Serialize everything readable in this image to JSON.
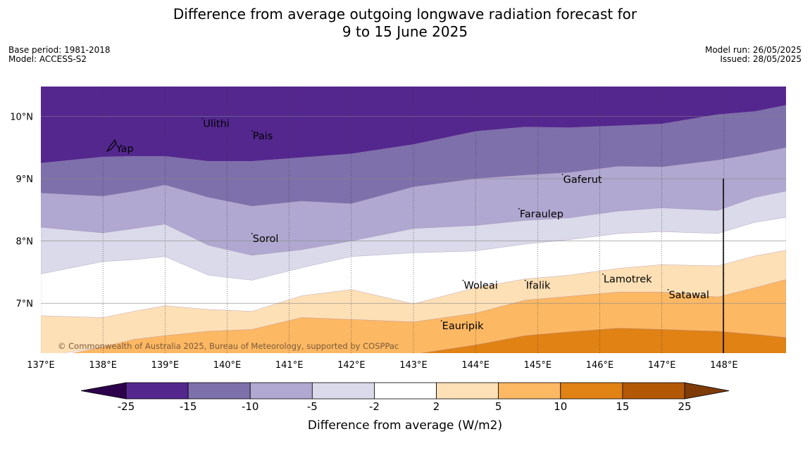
{
  "header": {
    "title_line1": "Difference from average outgoing longwave radiation forecast for",
    "title_line2": "9 to 15 June 2025",
    "base_period": "Base period: 1981-2018",
    "model": "Model: ACCESS-S2",
    "model_run": "Model run: 26/05/2025",
    "issued": "Issued: 28/05/2025"
  },
  "map": {
    "x_ticks": [
      {
        "lon": 137,
        "label": "137°E"
      },
      {
        "lon": 138,
        "label": "138°E"
      },
      {
        "lon": 139,
        "label": "139°E"
      },
      {
        "lon": 140,
        "label": "140°E"
      },
      {
        "lon": 141,
        "label": "141°E"
      },
      {
        "lon": 142,
        "label": "142°E"
      },
      {
        "lon": 143,
        "label": "143°E"
      },
      {
        "lon": 144,
        "label": "144°E"
      },
      {
        "lon": 145,
        "label": "145°E"
      },
      {
        "lon": 146,
        "label": "146°E"
      },
      {
        "lon": 147,
        "label": "147°E"
      },
      {
        "lon": 148,
        "label": "148°E"
      }
    ],
    "y_ticks": [
      {
        "lat": 10,
        "label": "10°N"
      },
      {
        "lat": 9,
        "label": "9°N"
      },
      {
        "lat": 8,
        "label": "8°N"
      },
      {
        "lat": 7,
        "label": "7°N"
      }
    ],
    "places": [
      {
        "name": "Yap",
        "lon": 138.2,
        "lat": 9.5
      },
      {
        "name": "Ulithi",
        "lon": 139.6,
        "lat": 9.9
      },
      {
        "name": "Pais",
        "lon": 140.4,
        "lat": 9.7
      },
      {
        "name": "Gaferut",
        "lon": 145.4,
        "lat": 9.0
      },
      {
        "name": "Faraulep",
        "lon": 144.7,
        "lat": 8.45
      },
      {
        "name": "Sorol",
        "lon": 140.4,
        "lat": 8.05
      },
      {
        "name": "Woleai",
        "lon": 143.8,
        "lat": 7.3
      },
      {
        "name": "Ifalik",
        "lon": 144.8,
        "lat": 7.3
      },
      {
        "name": "Lamotrek",
        "lon": 146.05,
        "lat": 7.4
      },
      {
        "name": "Satawal",
        "lon": 147.1,
        "lat": 7.15
      },
      {
        "name": "Eauripik",
        "lon": 143.45,
        "lat": 6.65
      }
    ],
    "copyright": "© Commonwealth of Australia 2025, Bureau of Meteorology, supported by COSPPac"
  },
  "colorbar": {
    "label": "Difference from average (W/m2)",
    "ticks": [
      "-25",
      "-15",
      "-10",
      "-5",
      "-2",
      "2",
      "5",
      "10",
      "15",
      "25"
    ],
    "colors": [
      "#54278f",
      "#7e70ab",
      "#b0a8d0",
      "#dadaea",
      "#ffffff",
      "#fee0b6",
      "#fdb863",
      "#e08214",
      "#b35806"
    ],
    "extend_low_color": "#2d004b",
    "extend_high_color": "#7f3b08"
  },
  "chart_data": {
    "type": "heatmap",
    "title": "Difference from average outgoing longwave radiation forecast for 9 to 15 June 2025",
    "xlabel": "",
    "ylabel": "",
    "xlim": [
      137,
      149
    ],
    "ylim": [
      6.2,
      10.5
    ],
    "legend": "bottom",
    "units": "W/m2",
    "levels": [
      -25,
      -15,
      -10,
      -5,
      -2,
      2,
      5,
      10,
      15,
      25
    ],
    "contour_x": [
      137,
      138,
      138.5,
      139,
      139.7,
      140.4,
      141.2,
      142,
      143,
      144,
      144.8,
      145.5,
      146.3,
      147,
      147.9,
      148.5,
      149
    ],
    "contour_bands": [
      {
        "range": "-25 to -15",
        "color": "#54278f",
        "lower_boundary_lat": [
          9.25,
          9.35,
          9.36,
          9.36,
          9.28,
          9.28,
          9.34,
          9.4,
          9.55,
          9.76,
          9.83,
          9.82,
          9.85,
          9.88,
          10.03,
          10.08,
          10.18
        ]
      },
      {
        "range": "-15 to -10",
        "color": "#7e70ab",
        "lower_boundary_lat": [
          8.77,
          8.72,
          8.8,
          8.9,
          8.7,
          8.56,
          8.64,
          8.6,
          8.87,
          9.0,
          9.06,
          9.1,
          9.2,
          9.19,
          9.3,
          9.4,
          9.5
        ]
      },
      {
        "range": "-10 to -5",
        "color": "#b0a8d0",
        "lower_boundary_lat": [
          8.22,
          8.13,
          8.2,
          8.27,
          7.93,
          7.77,
          7.86,
          8.0,
          8.2,
          8.25,
          8.33,
          8.37,
          8.48,
          8.53,
          8.49,
          8.7,
          8.8
        ]
      },
      {
        "range": "-5 to -2",
        "color": "#dadaea",
        "lower_boundary_lat": [
          7.47,
          7.67,
          7.7,
          7.75,
          7.45,
          7.37,
          7.57,
          7.75,
          7.81,
          7.84,
          7.95,
          8.02,
          8.12,
          8.15,
          8.12,
          8.3,
          8.38
        ]
      },
      {
        "range": "-2 to 2",
        "color": "#ffffff",
        "lower_boundary_lat": [
          6.8,
          6.77,
          6.87,
          6.96,
          6.9,
          6.87,
          7.12,
          7.22,
          6.99,
          7.25,
          7.39,
          7.45,
          7.56,
          7.62,
          7.6,
          7.76,
          7.85
        ]
      },
      {
        "range": "2 to 5",
        "color": "#fee0b6",
        "lower_boundary_lat": [
          6.1,
          6.3,
          6.42,
          6.48,
          6.55,
          6.58,
          6.77,
          6.74,
          6.7,
          6.84,
          7.05,
          7.11,
          7.18,
          7.18,
          7.1,
          7.25,
          7.38
        ]
      },
      {
        "range": "5 to 10",
        "color": "#fdb863",
        "lower_boundary_lat": [
          6.1,
          6.1,
          6.1,
          6.1,
          6.1,
          6.1,
          6.1,
          6.1,
          6.18,
          6.33,
          6.48,
          6.54,
          6.6,
          6.58,
          6.55,
          6.5,
          6.45
        ]
      },
      {
        "range": "10 to 15",
        "color": "#e08214",
        "lower_boundary_lat": [
          6.1,
          6.1,
          6.1,
          6.1,
          6.1,
          6.1,
          6.1,
          6.1,
          6.1,
          6.1,
          6.1,
          6.1,
          6.1,
          6.1,
          6.1,
          6.1,
          6.1
        ]
      }
    ]
  }
}
